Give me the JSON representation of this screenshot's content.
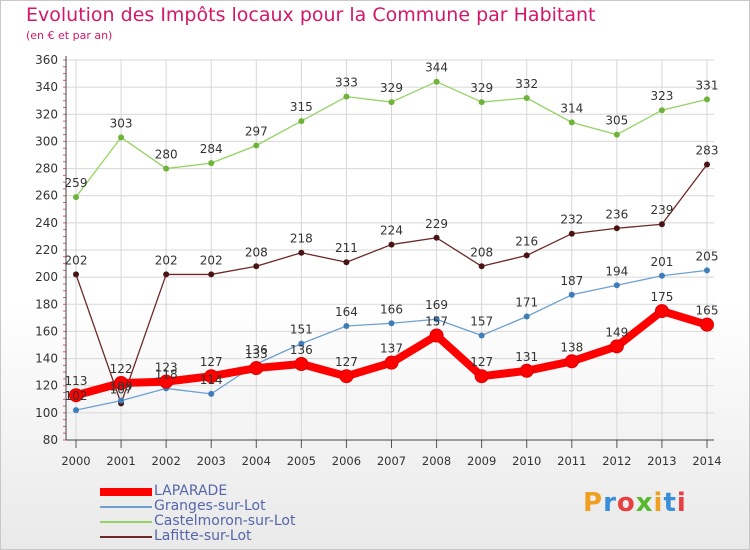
{
  "title": "Evolution des Impôts locaux pour la Commune par Habitant",
  "subtitle": "(en € et par an)",
  "logo_text": "Proxiti",
  "chart_data": {
    "type": "line",
    "x": [
      2000,
      2001,
      2002,
      2003,
      2004,
      2005,
      2006,
      2007,
      2008,
      2009,
      2010,
      2011,
      2012,
      2013,
      2014
    ],
    "ylim": [
      80,
      360
    ],
    "yticks": [
      80,
      100,
      120,
      140,
      160,
      180,
      200,
      220,
      240,
      260,
      280,
      300,
      320,
      340,
      360
    ],
    "grid": true,
    "legend_position": "bottom-left",
    "series": [
      {
        "name": "LAPARADE",
        "color": "#ff0000",
        "values": [
          113,
          122,
          123,
          127,
          133,
          136,
          127,
          137,
          157,
          127,
          131,
          138,
          149,
          175,
          165
        ],
        "labels": [
          "113",
          "122",
          "123",
          "127",
          "133",
          "136",
          "127",
          "137",
          "157",
          "127",
          "131",
          "138",
          "149",
          "175",
          "165"
        ]
      },
      {
        "name": "Granges-sur-Lot",
        "color": "#6ea0d2",
        "values": [
          102,
          109,
          118,
          114,
          136,
          151,
          164,
          166,
          169,
          157,
          171,
          187,
          194,
          201,
          205
        ],
        "labels": [
          "102",
          "109",
          "118",
          "114",
          "136",
          "151",
          "164",
          "166",
          "169",
          "157",
          "171",
          "187",
          "194",
          "201",
          "205"
        ]
      },
      {
        "name": "Castelmoron-sur-Lot",
        "color": "#96d264",
        "values": [
          259,
          303,
          280,
          284,
          297,
          315,
          333,
          329,
          344,
          329,
          332,
          314,
          305,
          323,
          331
        ],
        "labels": [
          "259",
          "303",
          "280",
          "284",
          "297",
          "315",
          "333",
          "329",
          "344",
          "329",
          "332",
          "314",
          "305",
          "323",
          "331"
        ]
      },
      {
        "name": "Lafitte-sur-Lot",
        "color": "#6e2828",
        "values": [
          202,
          107,
          202,
          202,
          208,
          218,
          211,
          224,
          229,
          208,
          216,
          232,
          236,
          239,
          283
        ],
        "labels": [
          "202",
          "107",
          "202",
          "202",
          "208",
          "218",
          "211",
          "224",
          "229",
          "208",
          "216",
          "232",
          "236",
          "239",
          "283"
        ]
      }
    ]
  }
}
